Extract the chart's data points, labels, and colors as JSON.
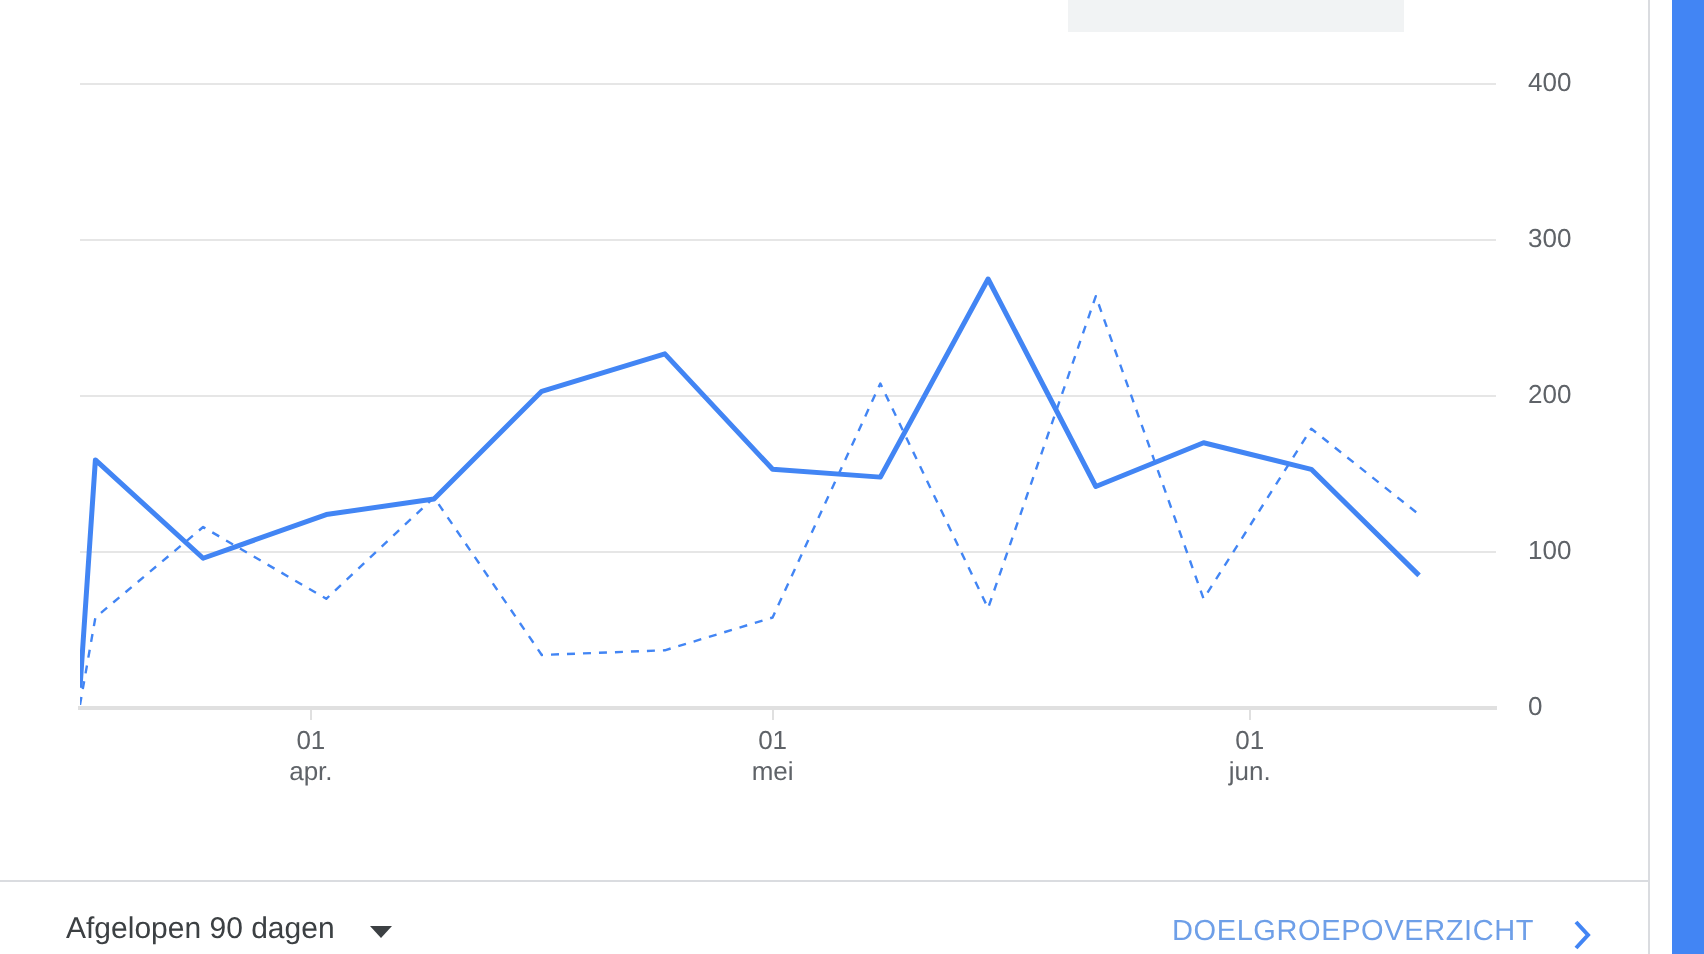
{
  "chart_data": {
    "type": "line",
    "x": [
      "--03-17",
      "--03-18",
      "--03-25",
      "--04-02",
      "--04-09",
      "--04-16",
      "--04-24",
      "--05-01",
      "--05-08",
      "--05-15",
      "--05-22",
      "--05-29",
      "--06-05",
      "--06-12"
    ],
    "series": [
      {
        "color": "#4285f4",
        "line_style": "solid",
        "values": [
          13,
          159,
          96,
          124,
          134,
          203,
          227,
          153,
          148,
          275,
          142,
          170,
          153,
          85
        ]
      },
      {
        "color": "#4285f4",
        "line_style": "dashed",
        "values": [
          2,
          58,
          116,
          70,
          135,
          34,
          37,
          58,
          208,
          64,
          264,
          70,
          179,
          124
        ]
      }
    ],
    "xlim": [
      "--03-17",
      "--06-17"
    ],
    "xticks": [
      {
        "value": "--04-01",
        "label": "01\napr."
      },
      {
        "value": "--05-01",
        "label": "01\nmei"
      },
      {
        "value": "--06-01",
        "label": "01\njun."
      }
    ],
    "ylim": [
      0,
      400
    ],
    "yticks": [
      0,
      100,
      200,
      300,
      400
    ],
    "grid": "y",
    "legend": false,
    "marker": "none",
    "annotations": [
      "Afgelopen 90 dagen",
      "DOELGROEPOVERZICHT"
    ]
  }
}
